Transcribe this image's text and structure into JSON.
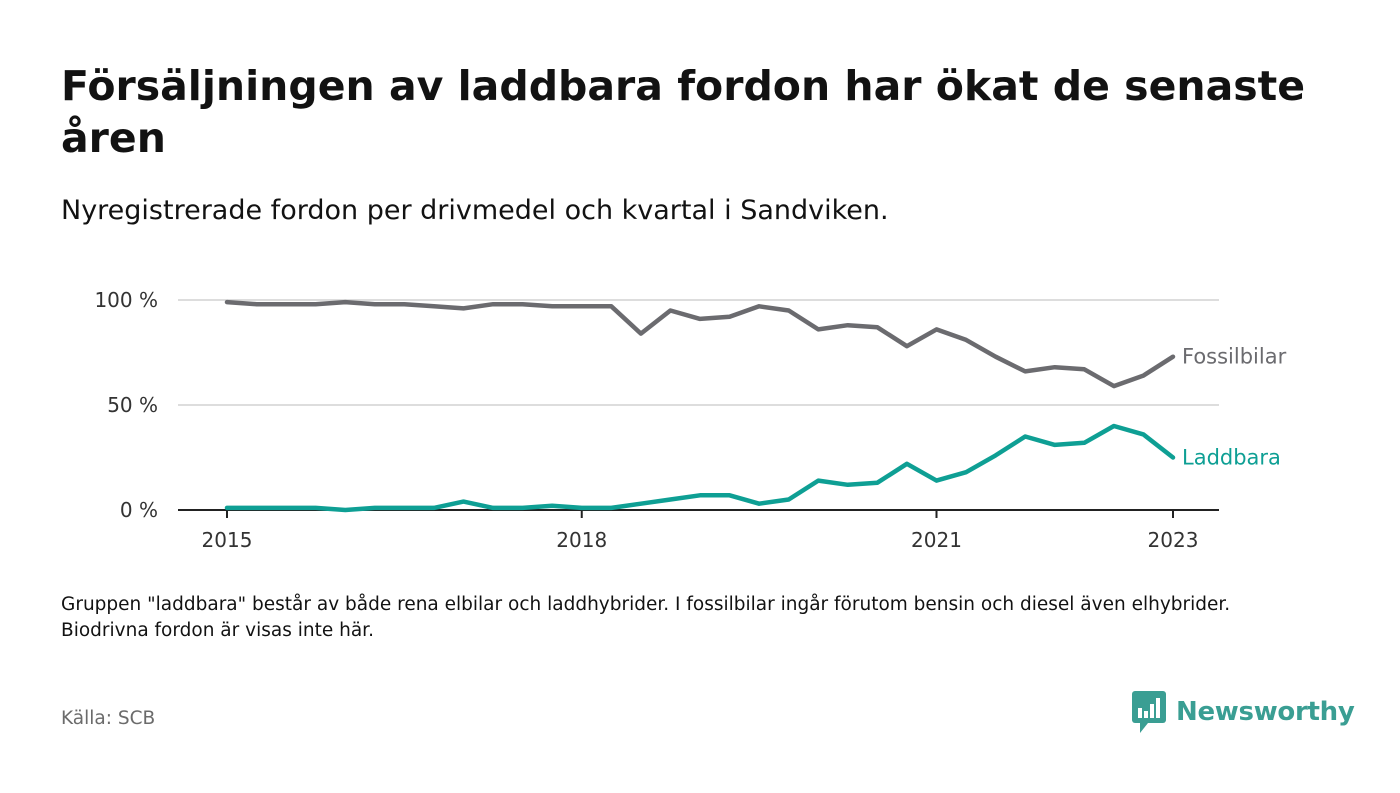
{
  "title": "Försäljningen av laddbara fordon har ökat de senaste åren",
  "subtitle": "Nyregistrerade fordon per drivmedel och kvartal i Sandviken.",
  "note": "Gruppen \"laddbara\" består av både rena elbilar och laddhybrider. I fossilbilar ingår förutom bensin och diesel även elhybrider. Biodrivna fordon är visas inte här.",
  "source": "Källa: SCB",
  "brand": {
    "name": "Newsworthy",
    "icon": "bar-chart-speech-bubble-icon"
  },
  "colors": {
    "fossil": "#6b6b6f",
    "charge": "#0e9f94",
    "grid": "#dddddd",
    "axis": "#222222",
    "brand": "#3a9e93"
  },
  "chart_data": {
    "type": "line",
    "x": [
      "2015Q1",
      "2015Q2",
      "2015Q3",
      "2015Q4",
      "2016Q1",
      "2016Q2",
      "2016Q3",
      "2016Q4",
      "2017Q1",
      "2017Q2",
      "2017Q3",
      "2017Q4",
      "2018Q1",
      "2018Q2",
      "2018Q3",
      "2018Q4",
      "2019Q1",
      "2019Q2",
      "2019Q3",
      "2019Q4",
      "2020Q1",
      "2020Q2",
      "2020Q3",
      "2020Q4",
      "2021Q1",
      "2021Q2",
      "2021Q3",
      "2021Q4",
      "2022Q1",
      "2022Q2",
      "2022Q3",
      "2022Q4",
      "2023Q1"
    ],
    "x_ticks": [
      "2015",
      "2018",
      "2021",
      "2023"
    ],
    "y_ticks": [
      "0 %",
      "50 %",
      "100 %"
    ],
    "ylim": [
      0,
      100
    ],
    "grid": true,
    "series": [
      {
        "name": "Fossilbilar",
        "values": [
          99,
          98,
          98,
          98,
          99,
          98,
          98,
          97,
          96,
          98,
          98,
          97,
          97,
          97,
          84,
          95,
          91,
          92,
          97,
          95,
          86,
          88,
          87,
          78,
          86,
          81,
          73,
          66,
          68,
          67,
          59,
          64,
          73
        ]
      },
      {
        "name": "Laddbara",
        "values": [
          1,
          1,
          1,
          1,
          0,
          1,
          1,
          1,
          4,
          1,
          1,
          2,
          1,
          1,
          3,
          5,
          7,
          7,
          3,
          5,
          14,
          12,
          13,
          22,
          14,
          18,
          26,
          35,
          31,
          32,
          40,
          36,
          25
        ]
      }
    ]
  }
}
